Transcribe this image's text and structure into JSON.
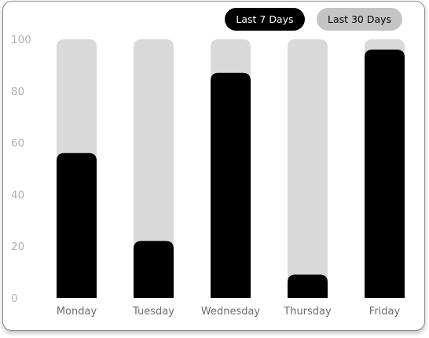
{
  "controls": {
    "last7_label": "Last 7 Days",
    "last30_label": "Last 30 Days",
    "active": "last7"
  },
  "colors": {
    "bar_fill": "#000000",
    "bar_track": "#d9d9d9",
    "button_active": "#000000",
    "button_inactive": "#c4c4c4"
  },
  "chart_data": {
    "type": "bar",
    "categories": [
      "Monday",
      "Tuesday",
      "Wednesday",
      "Thursday",
      "Friday"
    ],
    "values": [
      56,
      22,
      87,
      9,
      96
    ],
    "ylim": [
      0,
      100
    ],
    "yticks": [
      0,
      20,
      40,
      60,
      80,
      100
    ],
    "grid": false,
    "legend": "none",
    "title": "",
    "xlabel": "",
    "ylabel": ""
  }
}
